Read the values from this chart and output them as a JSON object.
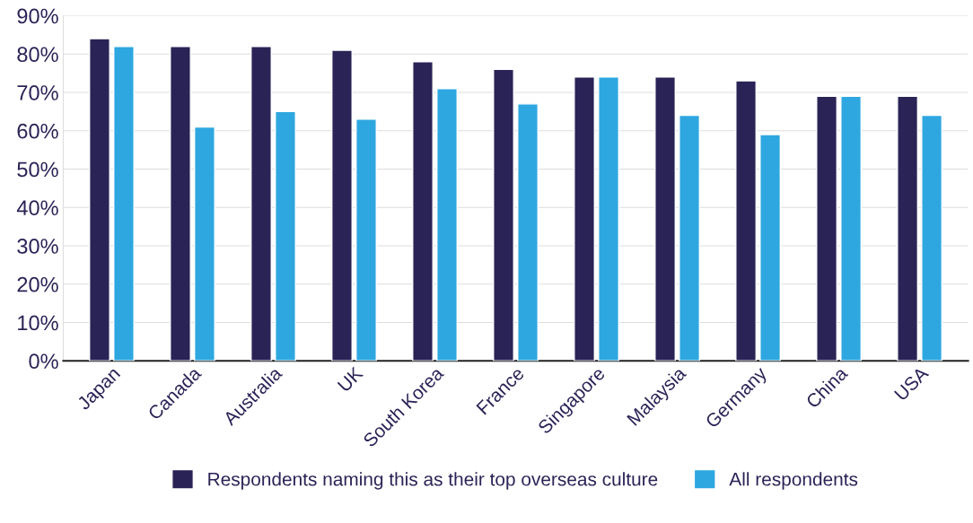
{
  "chart_data": {
    "type": "bar",
    "categories": [
      "Japan",
      "Canada",
      "Australia",
      "UK",
      "South Korea",
      "France",
      "Singapore",
      "Malaysia",
      "Germany",
      "China",
      "USA"
    ],
    "series": [
      {
        "name": "Respondents naming this as their top overseas culture",
        "color": "#2a2356",
        "values": [
          84,
          82,
          82,
          81,
          78,
          76,
          74,
          74,
          73,
          69,
          69
        ]
      },
      {
        "name": "All respondents",
        "color": "#2ea7e0",
        "values": [
          82,
          61,
          65,
          63,
          71,
          67,
          74,
          64,
          59,
          69,
          64
        ]
      }
    ],
    "ylim": [
      0,
      90
    ],
    "yticks": [
      {
        "value": 0,
        "label": "0%"
      },
      {
        "value": 10,
        "label": "10%"
      },
      {
        "value": 20,
        "label": "20%"
      },
      {
        "value": 30,
        "label": "30%"
      },
      {
        "value": 40,
        "label": "40%"
      },
      {
        "value": 50,
        "label": "50%"
      },
      {
        "value": 60,
        "label": "60%"
      },
      {
        "value": 70,
        "label": "70%"
      },
      {
        "value": 80,
        "label": "80%"
      },
      {
        "value": 90,
        "label": "90%"
      }
    ],
    "grid": "y",
    "legend": "bottom"
  }
}
